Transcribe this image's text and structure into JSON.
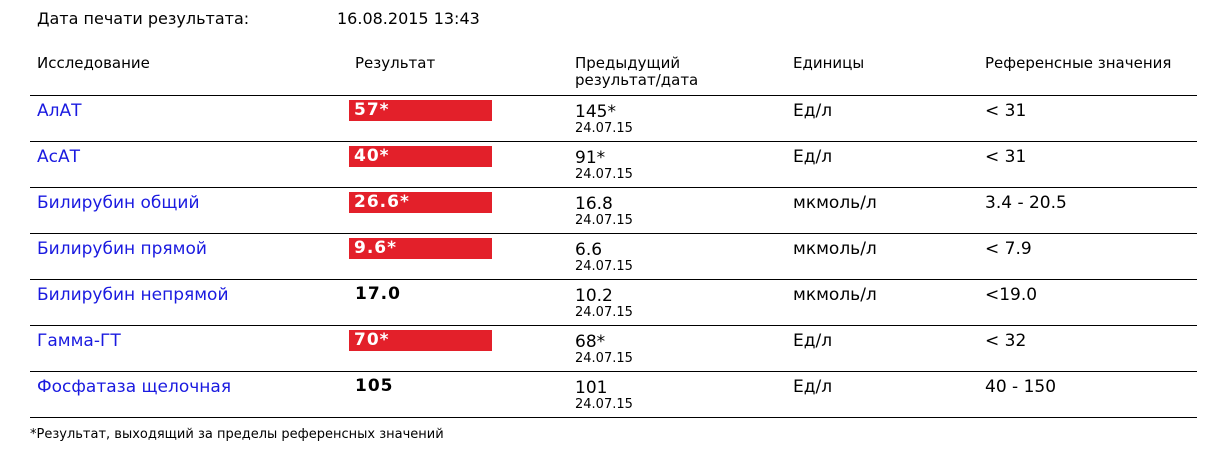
{
  "print_date": {
    "label": "Дата печати результата:",
    "value": "16.08.2015 13:43"
  },
  "table": {
    "headers": [
      "Исследование",
      "Результат",
      "Предыдущий результат/дата",
      "Единицы",
      "Референсные значения"
    ],
    "rows": [
      {
        "name": "АлАТ",
        "result": "57*",
        "highlight": true,
        "previous": "145*",
        "previous_date": "24.07.15",
        "units": "Ед/л",
        "reference": "< 31"
      },
      {
        "name": "АсАТ",
        "result": "40*",
        "highlight": true,
        "previous": "91*",
        "previous_date": "24.07.15",
        "units": "Ед/л",
        "reference": "< 31"
      },
      {
        "name": "Билирубин общий",
        "result": "26.6*",
        "highlight": true,
        "previous": "16.8",
        "previous_date": "24.07.15",
        "units": "мкмоль/л",
        "reference": "3.4 - 20.5"
      },
      {
        "name": "Билирубин прямой",
        "result": "9.6*",
        "highlight": true,
        "previous": "6.6",
        "previous_date": "24.07.15",
        "units": "мкмоль/л",
        "reference": "< 7.9"
      },
      {
        "name": "Билирубин непрямой",
        "result": "17.0",
        "highlight": false,
        "previous": "10.2",
        "previous_date": "24.07.15",
        "units": "мкмоль/л",
        "reference": "<19.0"
      },
      {
        "name": "Гамма-ГТ",
        "result": "70*",
        "highlight": true,
        "previous": "68*",
        "previous_date": "24.07.15",
        "units": "Ед/л",
        "reference": "< 32"
      },
      {
        "name": "Фосфатаза щелочная",
        "result": "105",
        "highlight": false,
        "previous": "101",
        "previous_date": "24.07.15",
        "units": "Ед/л",
        "reference": "40 - 150"
      }
    ]
  },
  "footnote": "*Результат, выходящий за пределы референсных значений"
}
